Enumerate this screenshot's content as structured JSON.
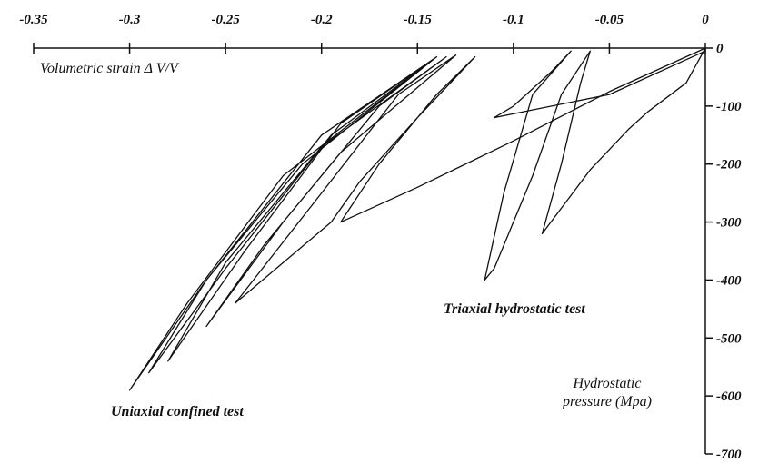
{
  "chart_data": {
    "type": "line",
    "x_label": "Volumetric strain  Δ V/V",
    "y_label": "Hydrostatic pressure (Mpa)",
    "xlim": [
      -0.35,
      0
    ],
    "xticks": [
      -0.35,
      -0.3,
      -0.25,
      -0.2,
      -0.15,
      -0.1,
      -0.05,
      0
    ],
    "ylim": [
      -700,
      0
    ],
    "yticks": [
      0,
      -100,
      -200,
      -300,
      -400,
      -500,
      -600,
      -700
    ],
    "grid": false,
    "series": [
      {
        "name": "Uniaxial confined test",
        "color": "#111111",
        "x": [
          0,
          -0.05,
          -0.1,
          -0.15,
          -0.19,
          -0.17,
          -0.14,
          -0.12,
          -0.15,
          -0.18,
          -0.195,
          -0.22,
          -0.245,
          -0.2,
          -0.16,
          -0.13,
          -0.19,
          -0.23,
          -0.26,
          -0.22,
          -0.17,
          -0.135,
          -0.2,
          -0.25,
          -0.28,
          -0.24,
          -0.19,
          -0.14,
          -0.21,
          -0.26,
          -0.29,
          -0.25,
          -0.195,
          -0.14,
          -0.22,
          -0.27,
          -0.3,
          -0.26,
          -0.2,
          -0.14
        ],
        "y": [
          0,
          -75,
          -160,
          -240,
          -300,
          -200,
          -80,
          -15,
          -120,
          -230,
          -300,
          -370,
          -440,
          -250,
          -80,
          -12,
          -180,
          -340,
          -480,
          -300,
          -100,
          -15,
          -170,
          -370,
          -540,
          -350,
          -130,
          -15,
          -200,
          -400,
          -560,
          -380,
          -150,
          -15,
          -220,
          -440,
          -590,
          -400,
          -150,
          -15
        ]
      },
      {
        "name": "Triaxial hydrostatic test",
        "color": "#111111",
        "x": [
          0,
          -0.01,
          -0.03,
          -0.04,
          -0.06,
          -0.085,
          -0.075,
          -0.065,
          -0.06,
          -0.075,
          -0.09,
          -0.11,
          -0.115,
          -0.105,
          -0.09,
          -0.07,
          -0.08,
          -0.1,
          -0.11,
          -0.05,
          0
        ],
        "y": [
          0,
          -60,
          -110,
          -140,
          -210,
          -320,
          -200,
          -60,
          -5,
          -80,
          -220,
          -380,
          -400,
          -250,
          -80,
          -5,
          -40,
          -100,
          -120,
          -80,
          -5
        ]
      }
    ]
  }
}
